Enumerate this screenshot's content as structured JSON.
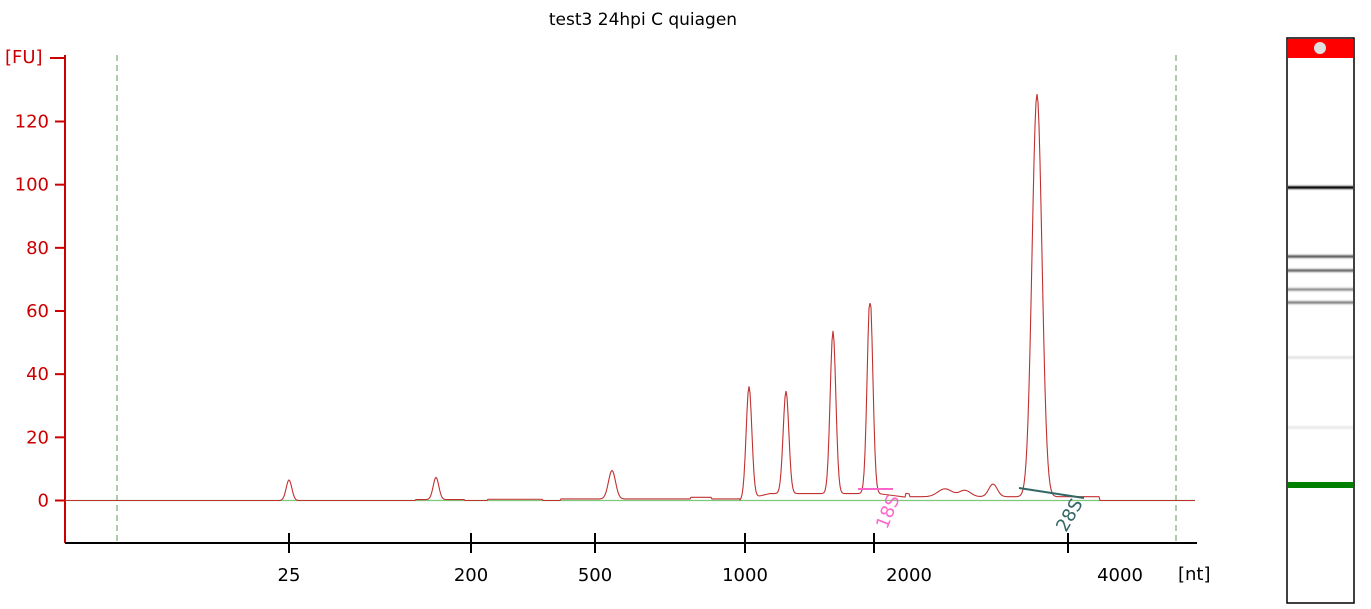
{
  "chart_data": {
    "type": "line",
    "title": "test3 24hpi C quiagen",
    "ylabel": "[FU]",
    "xlabel": "[nt]",
    "ylim": [
      -13,
      137
    ],
    "y_ticks": [
      0,
      20,
      40,
      60,
      80,
      100,
      120
    ],
    "x_ticks": [
      {
        "label": "25"
      },
      {
        "label": "200"
      },
      {
        "label": "500"
      },
      {
        "label": "1000"
      },
      {
        "label": "2000"
      },
      {
        "label": "4000"
      }
    ],
    "series": [
      {
        "color": "#c03030",
        "x": [
          "25",
          "200",
          "500",
          "1000",
          "2000",
          "4000"
        ],
        "peaks": [
          {
            "size": "25",
            "y": 7
          },
          {
            "size": "~120",
            "y": 7.5
          },
          {
            "size": "~520",
            "y": 9.5
          },
          {
            "size": "~1000",
            "y": 36
          },
          {
            "size": "~1200",
            "y": 33
          },
          {
            "size": "~1500",
            "y": 52
          },
          {
            "size": "~1750",
            "y": 63
          },
          {
            "size": "~3100",
            "y": 128
          }
        ]
      }
    ],
    "annotations": [
      {
        "text": "18S",
        "color": "#ff66cc"
      },
      {
        "text": "28S",
        "color": "#336666"
      }
    ],
    "grid": false,
    "baseline_color": "#7cc97c",
    "gel_lane": {
      "marker_color": "#ff0000",
      "lower_marker_color": "#008000",
      "bands": [
        {
          "label": "marker",
          "darkness": 0.95
        },
        {
          "label": "28S",
          "darkness": 0.6
        },
        {
          "label": "18S",
          "darkness": 0.55
        },
        {
          "label": "band",
          "darkness": 0.4
        },
        {
          "label": "band",
          "darkness": 0.45
        },
        {
          "label": "faint",
          "darkness": 0.1
        },
        {
          "label": "faint",
          "darkness": 0.08
        }
      ]
    }
  }
}
